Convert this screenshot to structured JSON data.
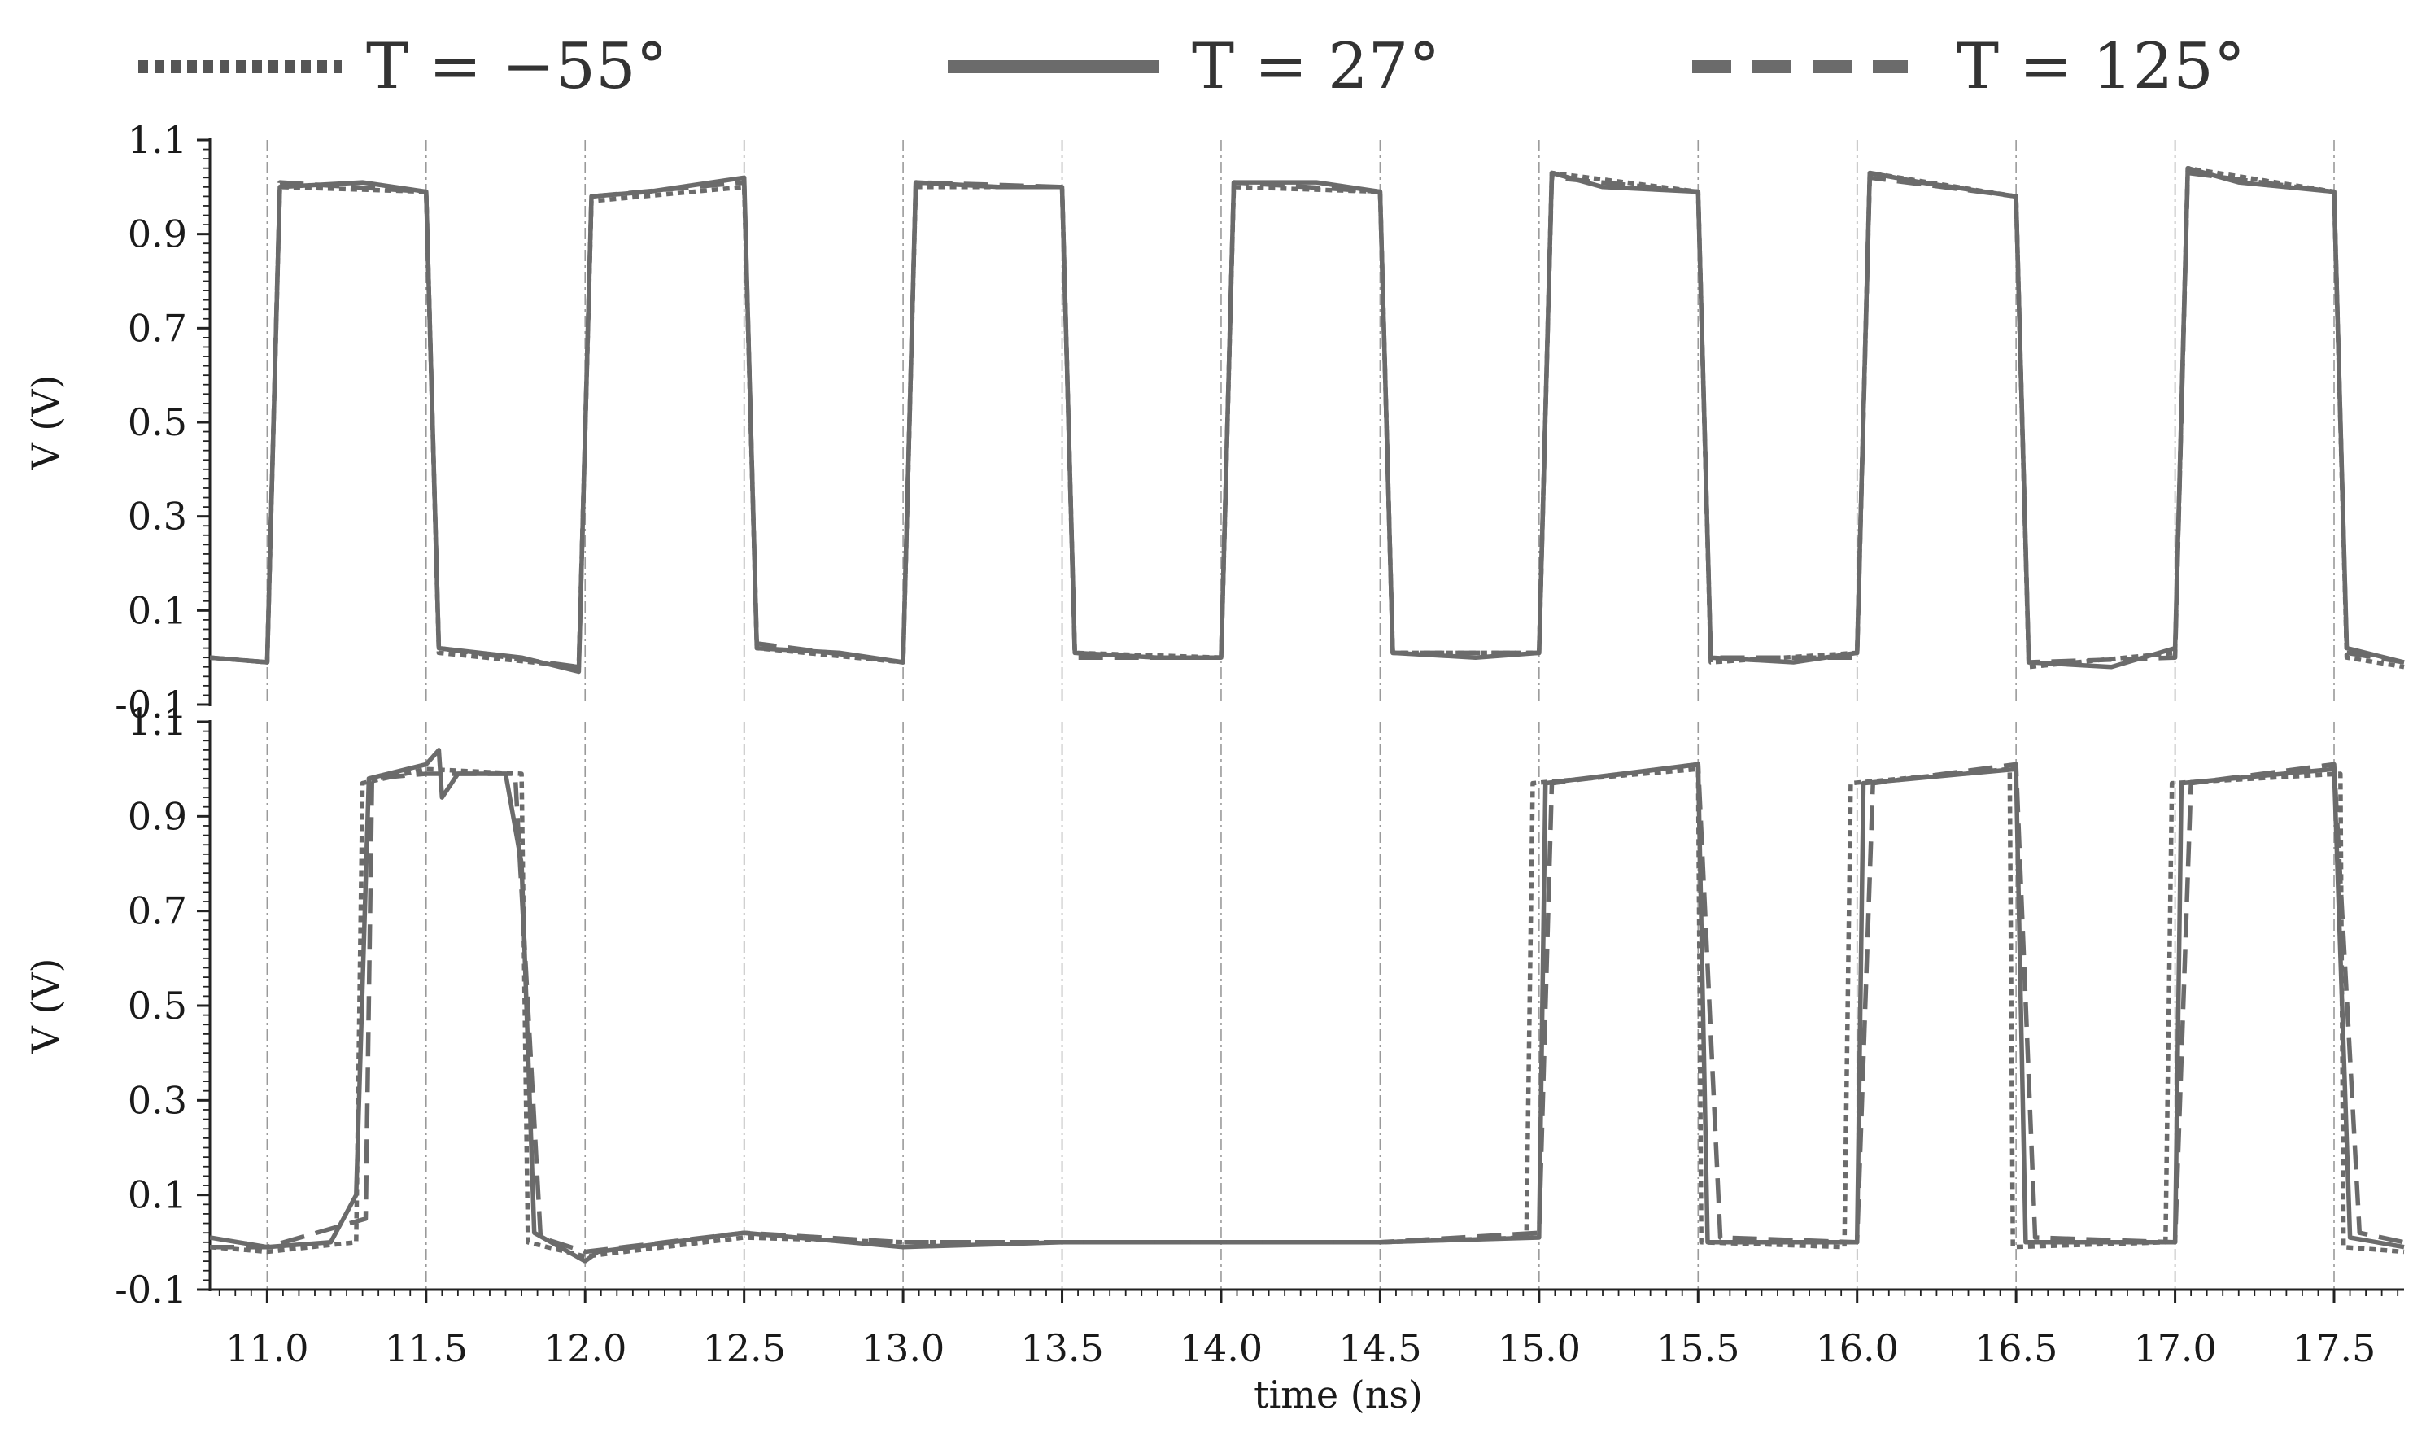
{
  "chart_data": {
    "type": "line",
    "legend": {
      "placement": "top",
      "entries": [
        {
          "label": "T = −55°",
          "style": "dotted"
        },
        {
          "label": "T = 27°",
          "style": "solid"
        },
        {
          "label": "T = 125°",
          "style": "dashed"
        }
      ]
    },
    "color": "#6b6b6b",
    "xlabel": "time (ns)",
    "xlim": [
      10.82,
      17.72
    ],
    "xticks": [
      11.0,
      11.5,
      12.0,
      12.5,
      13.0,
      13.5,
      14.0,
      14.5,
      15.0,
      15.5,
      16.0,
      16.5,
      17.0,
      17.5
    ],
    "xtick_labels": [
      "11.0",
      "11.5",
      "12.0",
      "12.5",
      "13.0",
      "13.5",
      "14.0",
      "14.5",
      "15.0",
      "15.5",
      "16.0",
      "16.5",
      "17.0",
      "17.5"
    ],
    "grid": "vertical dash-dot at x ticks",
    "panels": [
      {
        "ylabel": "V (V)",
        "ylim": [
          -0.1,
          1.1
        ],
        "yticks": [
          -0.1,
          0.1,
          0.3,
          0.5,
          0.7,
          0.9,
          1.1
        ],
        "ytick_labels": [
          "-0.1",
          "0.1",
          "0.3",
          "0.5",
          "0.7",
          "0.9",
          "1.1"
        ],
        "series": [
          {
            "name": "T = −55°",
            "style": "dotted",
            "x": [
              10.82,
              11.0,
              11.04,
              11.5,
              11.54,
              11.98,
              12.02,
              12.5,
              12.54,
              13.0,
              13.04,
              13.5,
              13.54,
              14.0,
              14.04,
              14.5,
              14.54,
              15.0,
              15.04,
              15.5,
              15.54,
              16.0,
              16.04,
              16.5,
              16.54,
              17.0,
              17.04,
              17.5,
              17.54,
              17.72
            ],
            "y": [
              0.0,
              -0.01,
              1.0,
              0.99,
              0.01,
              -0.02,
              0.97,
              1.0,
              0.02,
              -0.01,
              1.0,
              1.0,
              0.01,
              0.0,
              1.0,
              0.99,
              0.01,
              0.01,
              1.03,
              0.99,
              -0.01,
              0.01,
              1.03,
              0.98,
              -0.02,
              0.01,
              1.04,
              0.99,
              0.0,
              -0.02
            ]
          },
          {
            "name": "T = 27°",
            "style": "solid",
            "x": [
              10.82,
              11.0,
              11.04,
              11.3,
              11.5,
              11.54,
              11.8,
              11.98,
              12.02,
              12.2,
              12.5,
              12.54,
              12.8,
              13.0,
              13.04,
              13.3,
              13.5,
              13.54,
              13.8,
              14.0,
              14.04,
              14.3,
              14.5,
              14.54,
              14.8,
              15.0,
              15.04,
              15.2,
              15.5,
              15.54,
              15.8,
              16.0,
              16.04,
              16.2,
              16.5,
              16.54,
              16.8,
              17.0,
              17.04,
              17.2,
              17.5,
              17.54,
              17.72
            ],
            "y": [
              0.0,
              -0.01,
              1.0,
              1.01,
              0.99,
              0.02,
              0.0,
              -0.03,
              0.98,
              0.99,
              1.02,
              0.02,
              0.01,
              -0.01,
              1.01,
              1.0,
              1.0,
              0.01,
              0.0,
              0.0,
              1.01,
              1.01,
              0.99,
              0.01,
              0.0,
              0.01,
              1.03,
              1.0,
              0.99,
              0.0,
              -0.01,
              0.01,
              1.03,
              1.01,
              0.98,
              -0.01,
              -0.02,
              0.02,
              1.04,
              1.01,
              0.99,
              0.02,
              -0.01
            ]
          },
          {
            "name": "T = 125°",
            "style": "dashed",
            "x": [
              10.82,
              11.0,
              11.04,
              11.5,
              11.54,
              11.98,
              12.02,
              12.5,
              12.54,
              13.0,
              13.04,
              13.5,
              13.54,
              14.0,
              14.04,
              14.5,
              14.54,
              15.0,
              15.04,
              15.5,
              15.54,
              16.0,
              16.04,
              16.5,
              16.54,
              17.0,
              17.04,
              17.5,
              17.54,
              17.72
            ],
            "y": [
              0.0,
              -0.01,
              1.01,
              0.99,
              0.02,
              -0.02,
              0.98,
              1.01,
              0.03,
              -0.01,
              1.01,
              1.0,
              0.0,
              0.0,
              1.01,
              0.99,
              0.01,
              0.01,
              1.02,
              0.99,
              0.0,
              0.0,
              1.02,
              0.98,
              -0.01,
              0.0,
              1.03,
              0.99,
              0.01,
              -0.01
            ]
          }
        ]
      },
      {
        "ylabel": "V (V)",
        "ylim": [
          -0.1,
          1.1
        ],
        "yticks": [
          -0.1,
          0.1,
          0.3,
          0.5,
          0.7,
          0.9,
          1.1
        ],
        "ytick_labels": [
          "-0.1",
          "0.1",
          "0.3",
          "0.5",
          "0.7",
          "0.9",
          "1.1"
        ],
        "series": [
          {
            "name": "T = −55°",
            "style": "dotted",
            "x": [
              10.82,
              11.0,
              11.28,
              11.3,
              11.5,
              11.8,
              11.82,
              12.0,
              12.5,
              13.0,
              13.5,
              14.0,
              14.5,
              14.96,
              14.98,
              15.5,
              15.51,
              15.96,
              15.98,
              16.48,
              16.49,
              16.97,
              16.99,
              17.52,
              17.53,
              17.72
            ],
            "y": [
              -0.01,
              -0.02,
              0.0,
              0.97,
              1.0,
              0.99,
              0.0,
              -0.03,
              0.01,
              0.0,
              0.0,
              0.0,
              0.0,
              0.01,
              0.97,
              1.0,
              0.0,
              -0.01,
              0.97,
              1.0,
              -0.01,
              0.0,
              0.97,
              0.99,
              -0.01,
              -0.02
            ]
          },
          {
            "name": "T = 27°",
            "style": "solid",
            "x": [
              10.82,
              11.0,
              11.2,
              11.28,
              11.32,
              11.5,
              11.54,
              11.55,
              11.6,
              11.75,
              11.8,
              11.84,
              12.0,
              12.04,
              12.5,
              13.0,
              13.5,
              14.0,
              14.5,
              15.0,
              15.02,
              15.5,
              15.53,
              16.0,
              16.02,
              16.5,
              16.53,
              17.0,
              17.02,
              17.5,
              17.55,
              17.72
            ],
            "y": [
              0.01,
              -0.01,
              0.0,
              0.1,
              0.98,
              1.01,
              1.04,
              0.94,
              0.99,
              0.99,
              0.8,
              0.02,
              -0.04,
              -0.02,
              0.02,
              -0.01,
              0.0,
              0.0,
              0.0,
              0.01,
              0.97,
              1.01,
              0.0,
              0.0,
              0.97,
              1.0,
              0.0,
              0.0,
              0.97,
              1.0,
              0.01,
              -0.01
            ]
          },
          {
            "name": "T = 125°",
            "style": "dashed",
            "x": [
              10.82,
              11.0,
              11.31,
              11.33,
              11.5,
              11.78,
              11.86,
              12.0,
              12.5,
              13.0,
              13.5,
              14.0,
              14.5,
              15.0,
              15.04,
              15.5,
              15.57,
              16.0,
              16.05,
              16.5,
              16.56,
              17.0,
              17.05,
              17.5,
              17.58,
              17.72
            ],
            "y": [
              -0.01,
              -0.01,
              0.05,
              0.98,
              0.99,
              0.99,
              0.01,
              -0.02,
              0.02,
              0.0,
              0.0,
              0.0,
              0.0,
              0.02,
              0.97,
              1.01,
              0.01,
              0.0,
              0.97,
              1.01,
              0.01,
              0.0,
              0.97,
              1.01,
              0.02,
              0.0
            ]
          }
        ]
      }
    ]
  }
}
